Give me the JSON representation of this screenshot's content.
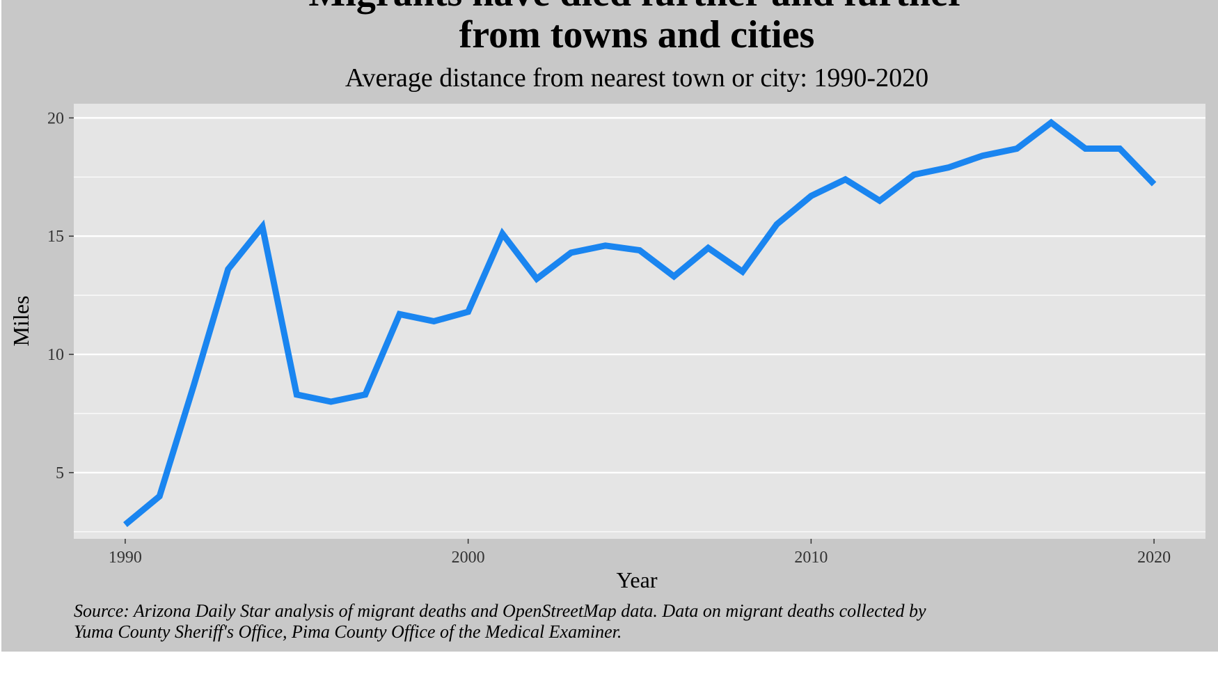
{
  "chart_data": {
    "type": "line",
    "title_lines": [
      "Migrants have died further and further",
      "from towns and cities"
    ],
    "subtitle": "Average distance from nearest town or city: 1990-2020",
    "xlabel": "Year",
    "ylabel": "Miles",
    "caption_lines": [
      "Source: Arizona Daily Star analysis of migrant deaths and OpenStreetMap data. Data on migrant deaths collected by",
      "Yuma County Sheriff's Office, Pima County Office of the Medical Examiner."
    ],
    "xlim": [
      1988.5,
      2021.5
    ],
    "ylim": [
      2.2,
      20.6
    ],
    "x_ticks": [
      1990,
      2000,
      2010,
      2020
    ],
    "x_tick_labels": [
      "1990",
      "2000",
      "2010",
      "2020"
    ],
    "y_ticks": [
      5,
      10,
      15,
      20
    ],
    "y_tick_labels": [
      "5",
      "10",
      "15",
      "20"
    ],
    "y_minor": [
      2.5,
      7.5,
      12.5,
      17.5
    ],
    "grid": true,
    "series": [
      {
        "color": "#1a85f0",
        "x": [
          1990,
          1991,
          1992,
          1993,
          1994,
          1995,
          1996,
          1997,
          1998,
          1999,
          2000,
          2001,
          2002,
          2003,
          2004,
          2005,
          2006,
          2007,
          2008,
          2009,
          2010,
          2011,
          2012,
          2013,
          2014,
          2015,
          2016,
          2017,
          2018,
          2019,
          2020
        ],
        "y": [
          2.8,
          4.0,
          8.7,
          13.6,
          15.4,
          8.3,
          8.0,
          8.3,
          11.7,
          11.4,
          11.8,
          15.1,
          13.2,
          14.3,
          14.6,
          14.4,
          13.3,
          14.5,
          13.5,
          15.5,
          16.7,
          17.4,
          16.5,
          17.6,
          17.9,
          18.4,
          18.7,
          19.8,
          18.7,
          18.7,
          17.2
        ]
      }
    ],
    "colors": {
      "panel_bg": "#e5e5e5",
      "outer_bg": "#c8c8c8",
      "grid": "#ffffff"
    }
  }
}
